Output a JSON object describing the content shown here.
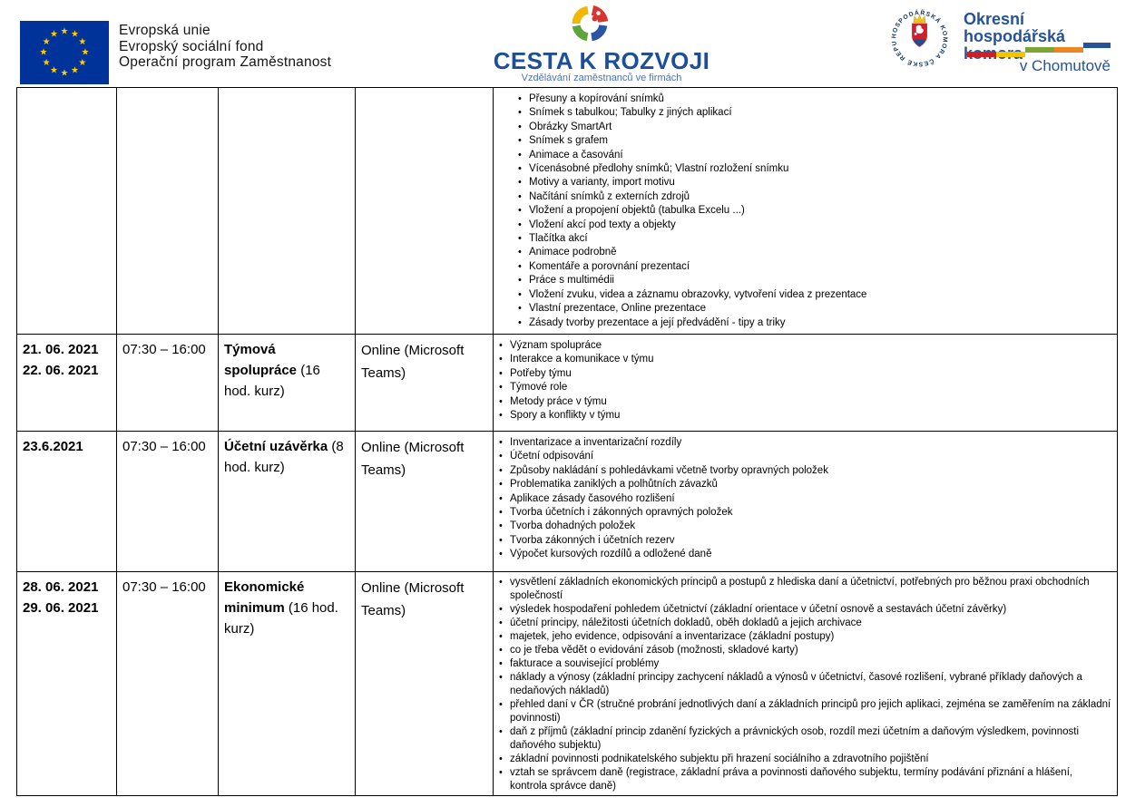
{
  "header": {
    "eu": {
      "line1": "Evropská unie",
      "line2": "Evropský sociální fond",
      "line3": "Operační program Zaměstnanost"
    },
    "cesta": {
      "title": "CESTA K ROZVOJI",
      "subtitle": "Vzdělávání zaměstnanců ve firmách"
    },
    "ohk": {
      "name_line1": "Okresní hospodářská",
      "name_line2": "komora",
      "city": "v Chomutově",
      "seal_text": "HOSPODÁŘSKÁ KOMORA ČESKÉ REPUBLIKY"
    }
  },
  "icons": {
    "eu_star": "★",
    "bullet": "•"
  },
  "colors": {
    "eu_flag_blue": "#003399",
    "eu_star_yellow": "#ffcc00",
    "cesta_blue": "#1d4e9a",
    "cesta_sub_blue": "#4a72b4",
    "cesta_yellow": "#f2b705",
    "cesta_red": "#d83430",
    "cesta_seg_blue": "#2d53a3",
    "cesta_green": "#5fa33c",
    "ohk_blue": "#255398",
    "bar_red": "#cc2026",
    "bar_yellow": "#f2c500",
    "bar_green": "#7ca633",
    "bar_orange": "#ee8522",
    "bar_blue": "#255398"
  },
  "table": {
    "rows": [
      {
        "date_lines": [],
        "time": "",
        "course": "",
        "course_note": "",
        "format": "",
        "topics_indented": true,
        "topics": [
          "Přesuny a kopírování snímků",
          "Snímek s tabulkou; Tabulky z jiných aplikací",
          "Obrázky SmartArt",
          "Snímek s grafem",
          "Animace a časování",
          "Vícenásobné předlohy snímků; Vlastní rozložení snímku",
          "Motivy a varianty, import motivu",
          "Načítání snímků z externích zdrojů",
          "Vložení a propojení objektů (tabulka Excelu ...)",
          "Vložení akcí pod texty a objekty",
          "Tlačítka akcí",
          "Animace podrobně",
          "Komentáře a porovnání prezentací",
          "Práce s multimédii",
          "Vložení zvuku, videa a záznamu obrazovky, vytvoření videa z prezentace",
          "Vlastní prezentace, Online prezentace",
          "Zásady tvorby prezentace a její předvádění - tipy a triky"
        ]
      },
      {
        "date_lines": [
          "21. 06. 2021",
          "22. 06. 2021"
        ],
        "time": "07:30 – 16:00",
        "course": "Týmová spolupráce",
        "course_note": "(16 hod. kurz)",
        "format": "Online (Microsoft Teams)",
        "topics_indented": false,
        "topics": [
          "Význam spolupráce",
          "Interakce a komunikace v týmu",
          "Potřeby týmu",
          "Týmové role",
          "Metody práce v týmu",
          "Spory a konflikty v týmu"
        ]
      },
      {
        "date_lines": [
          "23.6.2021"
        ],
        "time": "07:30 – 16:00",
        "course": "Účetní uzávěrka",
        "course_note": "(8 hod. kurz)",
        "format": "Online (Microsoft Teams)",
        "topics_indented": false,
        "topics": [
          "Inventarizace a inventarizační rozdíly",
          "Účetní odpisování",
          "Způsoby nakládání s pohledávkami včetně tvorby opravných položek",
          "Problematika zaniklých a polhůtních závazků",
          "Aplikace zásady časového rozlišení",
          "Tvorba účetních i zákonných opravných položek",
          "Tvorba dohadných položek",
          "Tvorba zákonných i účetních rezerv",
          "Výpočet kursových rozdílů a odložené daně"
        ]
      },
      {
        "date_lines": [
          "28. 06. 2021",
          "29. 06. 2021"
        ],
        "time": "07:30 – 16:00",
        "course": "Ekonomické minimum",
        "course_note": "(16 hod. kurz)",
        "format": "Online (Microsoft Teams)",
        "topics_indented": false,
        "topics": [
          "vysvětlení základních ekonomických principů a postupů z hlediska daní a účetnictví, potřebných pro běžnou praxi obchodních společností",
          "výsledek hospodaření pohledem účetnictví (základní orientace v účetní osnově a sestavách účetní závěrky)",
          "účetní principy, náležitosti účetních dokladů, oběh dokladů a jejich archivace",
          "majetek, jeho evidence, odpisování a inventarizace (základní postupy)",
          "co je třeba vědět o evidování zásob (možnosti, skladové karty)",
          "fakturace a související problémy",
          "náklady a výnosy (základní principy zachycení nákladů a výnosů v účetnictví, časové rozlišení, vybrané příklady daňových a nedaňových nákladů)",
          "přehled daní v ČR (stručné probrání jednotlivých daní a základních principů pro jejich aplikaci, zejména se zaměřením na základní povinnosti)",
          "daň z příjmů (základní princip zdanění fyzických a právnických osob, rozdíl mezi účetním a daňovým výsledkem, povinnosti daňového subjektu)",
          "základní povinnosti podnikatelského subjektu při hrazení sociálního a zdravotního pojištění",
          "vztah se správcem daně (registrace, základní práva a povinnosti daňového subjektu, termíny podávání přiznání a hlášení, kontrola správce daně)"
        ]
      }
    ]
  }
}
